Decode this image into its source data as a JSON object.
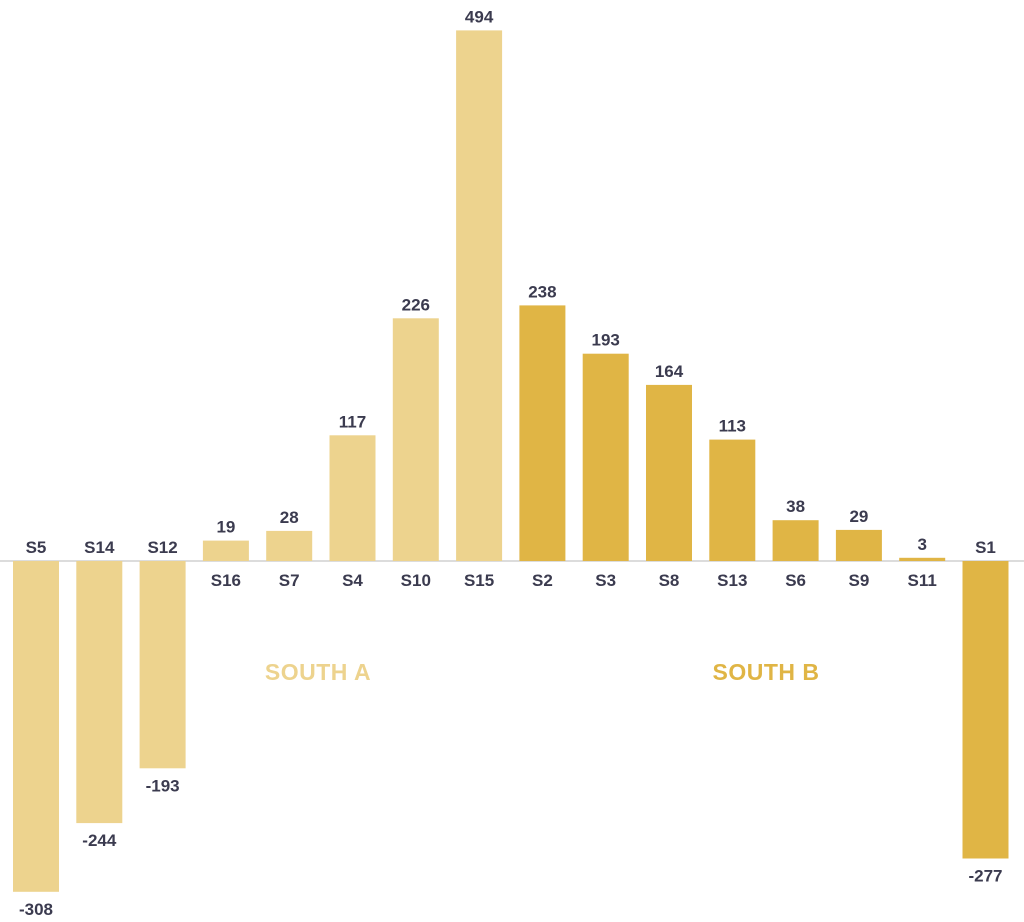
{
  "chart_data": {
    "type": "bar",
    "title": "",
    "xlabel": "",
    "ylabel": "",
    "ylim": [
      -308,
      494
    ],
    "grid": false,
    "legend": "none",
    "categories": [
      "S5",
      "S14",
      "S12",
      "S16",
      "S7",
      "S4",
      "S10",
      "S15",
      "S2",
      "S3",
      "S8",
      "S13",
      "S6",
      "S9",
      "S11",
      "S1"
    ],
    "values": [
      -308,
      -244,
      -193,
      19,
      28,
      117,
      226,
      494,
      238,
      193,
      164,
      113,
      38,
      29,
      3,
      -277
    ],
    "groups": [
      "South A",
      "South A",
      "South A",
      "South A",
      "South A",
      "South A",
      "South A",
      "South A",
      "South B",
      "South B",
      "South B",
      "South B",
      "South B",
      "South B",
      "South B",
      "South B"
    ],
    "group_labels": [
      {
        "name": "South A",
        "text": "SOUTH A",
        "color": "#EDD38E"
      },
      {
        "name": "South B",
        "text": "SOUTH B",
        "color": "#E0B545"
      }
    ]
  },
  "colors": {
    "south_a": "#EDD38E",
    "south_b": "#E0B545",
    "baseline": "#b8b8b8",
    "text": "#3b3b4f"
  }
}
